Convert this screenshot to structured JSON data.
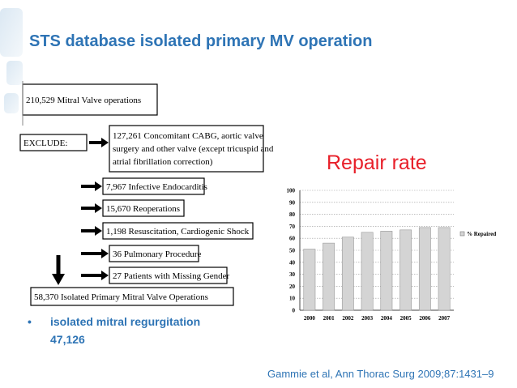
{
  "title": "STS database isolated primary MV operation",
  "flow": {
    "total": "210,529 Mitral Valve operations",
    "exclude_label": "EXCLUDE:",
    "exclusions_main": [
      "127,261 Concomitant CABG, aortic valve",
      "surgery and other valve (except tricuspid and",
      "atrial fibrillation correction)"
    ],
    "exclusions": [
      "7,967 Infective Endocarditis",
      "15,670 Reoperations",
      "1,198 Resuscitation, Cardiogenic Shock",
      "36 Pulmonary Procedure",
      "27 Patients with Missing Gender"
    ],
    "result": "58,370 Isolated Primary Mitral Valve Operations"
  },
  "bullet": [
    "isolated mitral regurgitation",
    "47,126"
  ],
  "chart_heading": "Repair rate",
  "chart_data": {
    "type": "bar",
    "categories": [
      "2000",
      "2001",
      "2002",
      "2003",
      "2004",
      "2005",
      "2006",
      "2007"
    ],
    "series": [
      {
        "name": "% Repaired",
        "color": "#d4d4d4",
        "values": [
          51,
          56,
          61,
          65,
          66,
          67,
          69,
          69
        ]
      }
    ],
    "ylim": [
      0,
      100
    ],
    "yticks": [
      0,
      10,
      20,
      30,
      40,
      50,
      60,
      70,
      80,
      90,
      100
    ],
    "grid": true,
    "legend": "right"
  },
  "citation": "Gammie et al, Ann Thorac Surg 2009;87:1431–9"
}
